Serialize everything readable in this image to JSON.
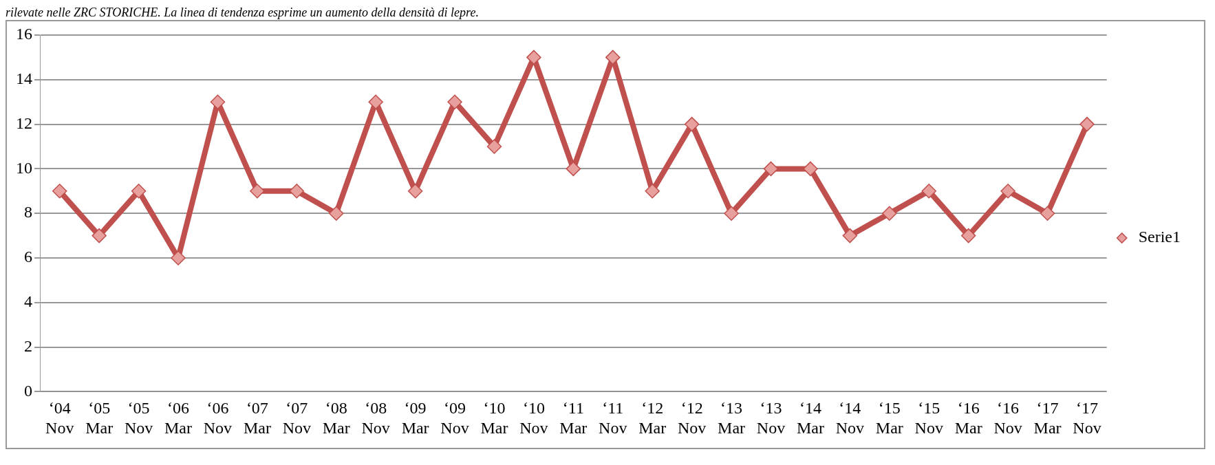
{
  "chart_data": {
    "type": "line",
    "annotations": [
      "rilevate nelle ZRC STORICHE. La linea di tendenza esprime un aumento della densità di lepre."
    ],
    "categories": [
      "‘04 Nov",
      "‘05 Mar",
      "‘05 Nov",
      "‘06 Mar",
      "‘06 Nov",
      "‘07 Mar",
      "‘07 Nov",
      "‘08 Mar",
      "‘08 Nov",
      "‘09 Mar",
      "‘09 Nov",
      "‘10 Mar",
      "‘10 Nov",
      "‘11 Mar",
      "‘11 Nov",
      "‘12 Mar",
      "‘12 Nov",
      "‘13 Mar",
      "‘13 Nov",
      "‘14 Mar",
      "‘14 Nov",
      "‘15 Mar",
      "‘15 Nov",
      "‘16 Mar",
      "‘16 Nov",
      "‘17 Mar",
      "‘17 Nov"
    ],
    "series": [
      {
        "name": "Serie1",
        "color": "#c0504d",
        "values": [
          9,
          7,
          9,
          6,
          13,
          9,
          9,
          8,
          13,
          9,
          13,
          11,
          15,
          10,
          15,
          9,
          12,
          8,
          10,
          10,
          7,
          8,
          9,
          7,
          9,
          8,
          12
        ]
      }
    ],
    "ylim": [
      0,
      16
    ],
    "yticks": [
      0,
      2,
      4,
      6,
      8,
      10,
      12,
      14,
      16
    ],
    "grid": "y",
    "legend": "right",
    "marker": "diamond",
    "line_style": "solid"
  }
}
